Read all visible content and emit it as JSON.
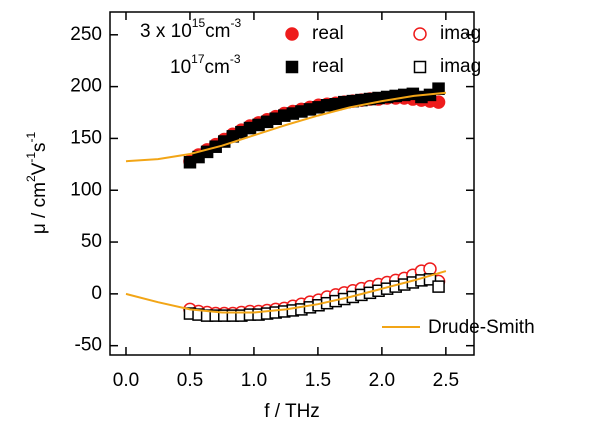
{
  "chart_data": {
    "type": "scatter",
    "x_label": "f / THz",
    "y_label": [
      "μ / cm",
      "2",
      "V",
      "-1",
      "s",
      "-1"
    ],
    "legend_groups": [
      [
        "3 x 10",
        "15",
        "cm",
        "-3"
      ],
      [
        "10",
        "17",
        "cm",
        "-3"
      ]
    ],
    "xlim": [
      -0.125,
      2.72
    ],
    "ylim": [
      -59,
      272
    ],
    "xticks": [
      {
        "value": 0,
        "label": "0.0"
      },
      0.5,
      {
        "value": 1,
        "label": "1.0"
      },
      1.5,
      {
        "value": 2,
        "label": "2.0"
      },
      2.5
    ],
    "yticks": [
      -50,
      0,
      50,
      100,
      150,
      200,
      250
    ],
    "series": [
      {
        "name": "real",
        "color": "#ee1c1c",
        "marker": "circle",
        "filled": true,
        "mode": "markers",
        "x": [
          0.5,
          0.567,
          0.634,
          0.701,
          0.768,
          0.835,
          0.902,
          0.969,
          1.036,
          1.103,
          1.17,
          1.237,
          1.304,
          1.371,
          1.438,
          1.505,
          1.572,
          1.639,
          1.706,
          1.773,
          1.84,
          1.907,
          1.974,
          2.041,
          2.108,
          2.175,
          2.242,
          2.309,
          2.376,
          2.443
        ],
        "values": [
          128,
          134,
          139,
          144,
          149,
          154,
          158,
          162,
          165,
          168,
          171,
          174,
          176,
          178,
          180,
          182,
          183,
          184,
          185,
          186,
          187,
          188,
          188,
          189,
          189,
          189,
          188,
          187,
          186,
          185
        ]
      },
      {
        "name": "imag",
        "color": "#ee1c1c",
        "marker": "circle",
        "filled": false,
        "mode": "markers",
        "x": [
          0.5,
          0.567,
          0.634,
          0.701,
          0.768,
          0.835,
          0.902,
          0.969,
          1.036,
          1.103,
          1.17,
          1.237,
          1.304,
          1.371,
          1.438,
          1.505,
          1.572,
          1.639,
          1.706,
          1.773,
          1.84,
          1.907,
          1.974,
          2.041,
          2.108,
          2.175,
          2.242,
          2.309,
          2.376,
          2.443
        ],
        "values": [
          -15,
          -17,
          -18,
          -19,
          -19,
          -19,
          -18,
          -17,
          -17,
          -16,
          -15,
          -14,
          -12,
          -10,
          -8,
          -6,
          -3,
          -1,
          1,
          3,
          5,
          7,
          9,
          11,
          13,
          15,
          18,
          22,
          24,
          12
        ]
      },
      {
        "name": "real",
        "color": "#000000",
        "marker": "square",
        "filled": true,
        "mode": "markers",
        "x": [
          0.5,
          0.567,
          0.634,
          0.701,
          0.768,
          0.835,
          0.902,
          0.969,
          1.036,
          1.103,
          1.17,
          1.237,
          1.304,
          1.371,
          1.438,
          1.505,
          1.572,
          1.639,
          1.706,
          1.773,
          1.84,
          1.907,
          1.974,
          2.041,
          2.108,
          2.175,
          2.242,
          2.309,
          2.376,
          2.443
        ],
        "values": [
          127,
          132,
          137,
          142,
          147,
          152,
          156,
          160,
          163,
          166,
          169,
          172,
          174,
          176,
          178,
          180,
          182,
          183,
          185,
          186,
          187,
          188,
          189,
          190,
          191,
          192,
          193,
          190,
          192,
          198
        ]
      },
      {
        "name": "imag",
        "color": "#000000",
        "marker": "square",
        "filled": false,
        "mode": "markers",
        "x": [
          0.5,
          0.567,
          0.634,
          0.701,
          0.768,
          0.835,
          0.902,
          0.969,
          1.036,
          1.103,
          1.17,
          1.237,
          1.304,
          1.371,
          1.438,
          1.505,
          1.572,
          1.639,
          1.706,
          1.773,
          1.84,
          1.907,
          1.974,
          2.041,
          2.108,
          2.175,
          2.242,
          2.309,
          2.376,
          2.443
        ],
        "values": [
          -19,
          -20,
          -21,
          -21,
          -21,
          -21,
          -21,
          -20,
          -20,
          -19,
          -18,
          -17,
          -16,
          -15,
          -13,
          -11,
          -9,
          -7,
          -5,
          -3,
          -1,
          1,
          3,
          5,
          7,
          9,
          11,
          13,
          14,
          7
        ]
      },
      {
        "name": "Drude-Smith",
        "color": "#f2a516",
        "mode": "line",
        "x": [
          0,
          0.25,
          0.5,
          0.75,
          1,
          1.25,
          1.5,
          1.75,
          2,
          2.25,
          2.5
        ],
        "values": [
          128,
          130,
          135,
          143,
          153,
          163,
          172,
          180,
          186,
          191,
          194
        ]
      },
      {
        "color": "#f2a516",
        "mode": "line",
        "x": [
          0,
          0.25,
          0.5,
          0.75,
          1,
          1.25,
          1.5,
          1.75,
          2,
          2.25,
          2.5
        ],
        "values": [
          0,
          -8,
          -15,
          -18,
          -18,
          -15,
          -10,
          -3,
          5,
          13,
          22
        ]
      }
    ]
  }
}
